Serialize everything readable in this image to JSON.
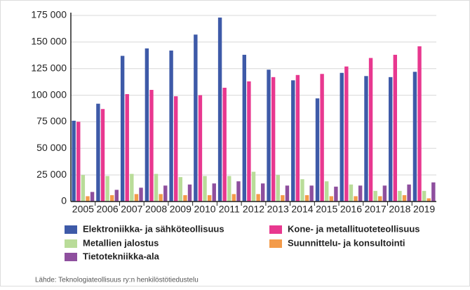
{
  "chart_data": {
    "type": "bar",
    "categories": [
      "2005",
      "2006",
      "2007",
      "2008",
      "2009",
      "2010",
      "2011",
      "2012",
      "2013",
      "2014",
      "2015",
      "2016",
      "2017",
      "2018",
      "2019"
    ],
    "series": [
      {
        "name": "Elektroniikka- ja sähköteollisuus",
        "color": "#3e5aa8",
        "values": [
          76000,
          92000,
          137000,
          144000,
          142000,
          157000,
          173000,
          138000,
          124000,
          114000,
          97000,
          121000,
          118000,
          117000,
          122000
        ]
      },
      {
        "name": "Kone- ja metallituoteteollisuus",
        "color": "#e8388f",
        "values": [
          75000,
          87000,
          101000,
          105000,
          99000,
          100000,
          107000,
          113000,
          117000,
          119000,
          120000,
          127000,
          135000,
          138000,
          146000
        ]
      },
      {
        "name": "Metallien jalostus",
        "color": "#b9dc99",
        "values": [
          25000,
          24000,
          26000,
          26000,
          23000,
          24000,
          24000,
          28000,
          25000,
          21000,
          19000,
          16000,
          10000,
          10000,
          10000
        ]
      },
      {
        "name": "Suunnittelu- ja konsultointi",
        "color": "#f39b4a",
        "values": [
          5000,
          6000,
          7000,
          7000,
          6000,
          6000,
          7000,
          7000,
          6000,
          6000,
          5000,
          5000,
          5000,
          6000,
          3000
        ]
      },
      {
        "name": "Tietotekniikka-ala",
        "color": "#8e4f9e",
        "values": [
          9000,
          11000,
          13000,
          15000,
          16000,
          17000,
          19000,
          17000,
          15000,
          15000,
          14000,
          15000,
          15000,
          16000,
          18000
        ]
      }
    ],
    "ylim": [
      0,
      175000
    ],
    "yticks": [
      0,
      {
        "value": 25000,
        "label": "25 000"
      },
      {
        "value": 50000,
        "label": "50 000"
      },
      {
        "value": 75000,
        "label": "75 000"
      },
      {
        "value": 100000,
        "label": "100 000"
      },
      {
        "value": 125000,
        "label": "125 000"
      },
      {
        "value": 150000,
        "label": "150 000"
      },
      {
        "value": 175000,
        "label": "175 000"
      }
    ],
    "grid": true,
    "source": "Lähde: Teknologiateollisuus ry:n henkilöstötiedustelu"
  }
}
